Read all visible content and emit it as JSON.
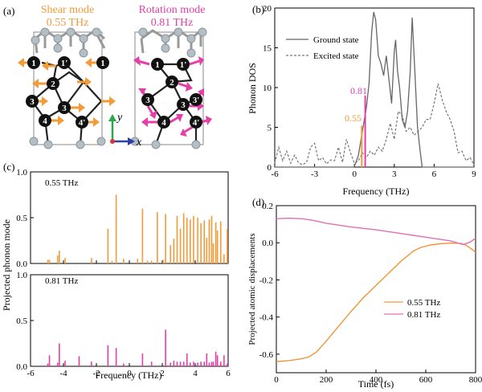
{
  "colors": {
    "shear": "#f29b38",
    "rotation": "#e33fa7",
    "shear_line": "#f0963a",
    "rotation_line": "#e36eb5",
    "ground": "#666666",
    "excited": "#777777",
    "atom_dark": "#111111",
    "atom_grey": "#b4bec5",
    "bond": "#888888",
    "axis_y": "#2aa84a",
    "axis_x": "#2b3fa8",
    "axis_z": "#e0303a"
  },
  "panel_a": {
    "label": "(a)",
    "shear_title": "Shear mode",
    "shear_freq": "0.55 THz",
    "rotation_title": "Rotation mode",
    "rotation_freq": "0.81 THz",
    "atoms": [
      "1",
      "1'",
      "2",
      "3",
      "3'",
      "4",
      "4'"
    ],
    "axis_y": "y",
    "axis_x": "x"
  },
  "chart_data": [
    {
      "id": "b",
      "label": "(b)",
      "type": "line",
      "title": "",
      "xlabel": "Frequency (THz)",
      "ylabel": "Phonon DOS",
      "xlim": [
        -6,
        9
      ],
      "ylim": [
        0,
        20
      ],
      "xticks": [
        -6,
        -3,
        0,
        3,
        6,
        9
      ],
      "yticks": [
        0,
        5,
        10,
        15,
        20
      ],
      "legend": [
        "Ground state",
        "Excited state"
      ],
      "annotations": [
        "0.81",
        "0.55"
      ],
      "series": [
        {
          "name": "Ground state",
          "x": [
            -6,
            -0.05,
            0.1,
            0.3,
            0.5,
            0.7,
            0.9,
            1.1,
            1.3,
            1.45,
            1.6,
            1.8,
            2.0,
            2.2,
            2.4,
            2.6,
            2.8,
            3.0,
            3.1,
            3.25,
            3.4,
            3.6,
            3.8,
            4.0,
            4.2,
            4.35,
            4.55,
            4.75,
            4.95,
            5.1,
            9
          ],
          "y": [
            0,
            0,
            0.5,
            1.5,
            3.5,
            5.5,
            7.5,
            10.5,
            17.0,
            19.5,
            18.5,
            14.0,
            13.0,
            11.5,
            14.0,
            11.0,
            8.0,
            14.5,
            16.0,
            12.0,
            10.0,
            6.0,
            5.0,
            7.0,
            12.0,
            18.8,
            12.0,
            5.0,
            2.0,
            0,
            0
          ]
        },
        {
          "name": "Excited state",
          "x": [
            -6,
            -5.7,
            -5.4,
            -5.1,
            -4.8,
            -4.5,
            -4.2,
            -3.9,
            -3.6,
            -3.3,
            -3.0,
            -2.7,
            -2.4,
            -2.1,
            -1.8,
            -1.5,
            -1.2,
            -0.9,
            -0.6,
            -0.3,
            0.0,
            0.3,
            0.6,
            0.9,
            1.2,
            1.5,
            1.8,
            2.1,
            2.4,
            2.7,
            3.0,
            3.3,
            3.6,
            3.9,
            4.2,
            4.5,
            4.8,
            5.1,
            5.4,
            5.7,
            6.0,
            6.3,
            6.6,
            6.9,
            7.2,
            7.5,
            7.8,
            8.1,
            8.4,
            8.7,
            9.0
          ],
          "y": [
            0.5,
            2.5,
            0.8,
            2.0,
            0.5,
            1.5,
            0.5,
            0.3,
            0.6,
            2.5,
            3.0,
            0.8,
            1.2,
            0.4,
            0.9,
            0.8,
            2.5,
            0.6,
            3.5,
            1.8,
            0.5,
            0.8,
            1.8,
            1.2,
            2.0,
            1.5,
            2.5,
            2.0,
            3.5,
            5.5,
            3.5,
            7.0,
            6.5,
            4.5,
            5.0,
            4.0,
            4.5,
            5.0,
            6.0,
            6.0,
            8.0,
            10.5,
            8.5,
            7.0,
            6.0,
            4.5,
            1.8,
            2.0,
            0.8,
            1.2,
            0.3
          ]
        }
      ],
      "markers": [
        {
          "name": "0.81 THz",
          "x": 0.81,
          "y": 9.0
        },
        {
          "name": "0.55 THz",
          "x": 0.55,
          "y": 5.2
        }
      ]
    },
    {
      "id": "c_top",
      "label": "(c)",
      "type": "bar",
      "title": "0.55 THz",
      "xlabel": "Frequency (THz)",
      "ylabel": "Projected phonon mode",
      "xlim": [
        -6,
        6
      ],
      "ylim": [
        0,
        1.0
      ],
      "xticks": [
        -6,
        -4,
        -2,
        0,
        2,
        4,
        6
      ],
      "yticks": [
        "0.0",
        "0.5",
        "1.0"
      ],
      "x": [
        -4.95,
        -4.85,
        -4.35,
        -4.25,
        -3.9,
        -2.3,
        -1.3,
        -1.05,
        -0.8,
        -0.35,
        0.5,
        0.8,
        1.1,
        1.35,
        1.7,
        2.05,
        2.2,
        2.5,
        2.7,
        2.9,
        3.1,
        3.3,
        3.5,
        3.7,
        3.9,
        4.15,
        4.35,
        4.55,
        4.7,
        4.85,
        5.0,
        5.1,
        5.25,
        5.35,
        5.55,
        5.75,
        5.95
      ],
      "y": [
        0.04,
        0.04,
        0.09,
        0.14,
        0.06,
        0.06,
        0.38,
        0.03,
        0.75,
        0.05,
        0.05,
        0.6,
        0.03,
        0.03,
        0.56,
        0.04,
        0.54,
        0.2,
        0.27,
        0.52,
        0.38,
        0.55,
        0.5,
        0.48,
        0.52,
        0.5,
        0.44,
        0.47,
        0.28,
        0.48,
        0.52,
        0.22,
        0.45,
        0.36,
        0.46,
        0.1,
        0.38
      ]
    },
    {
      "id": "c_bottom",
      "type": "bar",
      "title": "0.81 THz",
      "xlim": [
        -6,
        6
      ],
      "ylim": [
        0,
        1.0
      ],
      "xticks": [
        -6,
        -4,
        -2,
        0,
        2,
        4,
        6
      ],
      "yticks": [
        "0.0",
        "0.5",
        "1.0"
      ],
      "x": [
        -4.95,
        -4.85,
        -4.35,
        -4.25,
        -3.9,
        -3.05,
        -2.3,
        -1.3,
        -0.8,
        -0.35,
        0.8,
        1.35,
        2.2,
        2.5,
        2.7,
        2.9,
        3.1,
        3.3,
        3.5,
        3.7,
        3.9,
        4.15,
        4.35,
        4.55,
        4.7,
        4.85,
        5.0,
        5.1,
        5.25,
        5.35,
        5.55,
        5.75,
        5.95
      ],
      "y": [
        0.03,
        0.12,
        0.04,
        0.25,
        0.06,
        0.11,
        0.05,
        0.23,
        0.2,
        0.03,
        0.14,
        0.05,
        0.4,
        0.04,
        0.06,
        0.05,
        0.05,
        0.05,
        0.14,
        0.04,
        0.05,
        0.04,
        0.05,
        0.05,
        0.14,
        0.04,
        0.05,
        0.05,
        0.16,
        0.12,
        0.05,
        0.12,
        0.03
      ]
    },
    {
      "id": "d",
      "label": "(d)",
      "type": "line",
      "title": "",
      "xlabel": "Time (fs)",
      "ylabel": "Projected atomic displacements",
      "xlim": [
        0,
        800
      ],
      "ylim": [
        -0.7,
        0.2
      ],
      "xticks": [
        0,
        200,
        400,
        600,
        800
      ],
      "yticks": [
        "-0.6",
        "-0.4",
        "-0.2",
        "0.0",
        "0.2"
      ],
      "legend": [
        "0.55 THz",
        "0.81 THz"
      ],
      "series": [
        {
          "name": "0.55 THz",
          "x": [
            0,
            50,
            100,
            130,
            160,
            200,
            250,
            300,
            350,
            400,
            450,
            500,
            550,
            580,
            620,
            660,
            700,
            740,
            760,
            780,
            800
          ],
          "y": [
            -0.64,
            -0.635,
            -0.625,
            -0.615,
            -0.59,
            -0.53,
            -0.45,
            -0.37,
            -0.295,
            -0.23,
            -0.165,
            -0.1,
            -0.045,
            -0.025,
            -0.012,
            -0.005,
            -0.002,
            -0.003,
            -0.012,
            -0.03,
            -0.05
          ]
        },
        {
          "name": "0.81 THz",
          "x": [
            0,
            50,
            100,
            150,
            200,
            300,
            400,
            500,
            600,
            700,
            750,
            780,
            800
          ],
          "y": [
            0.13,
            0.132,
            0.13,
            0.12,
            0.105,
            0.085,
            0.07,
            0.05,
            0.03,
            0.01,
            -0.01,
            0.005,
            0.025
          ]
        }
      ]
    }
  ]
}
